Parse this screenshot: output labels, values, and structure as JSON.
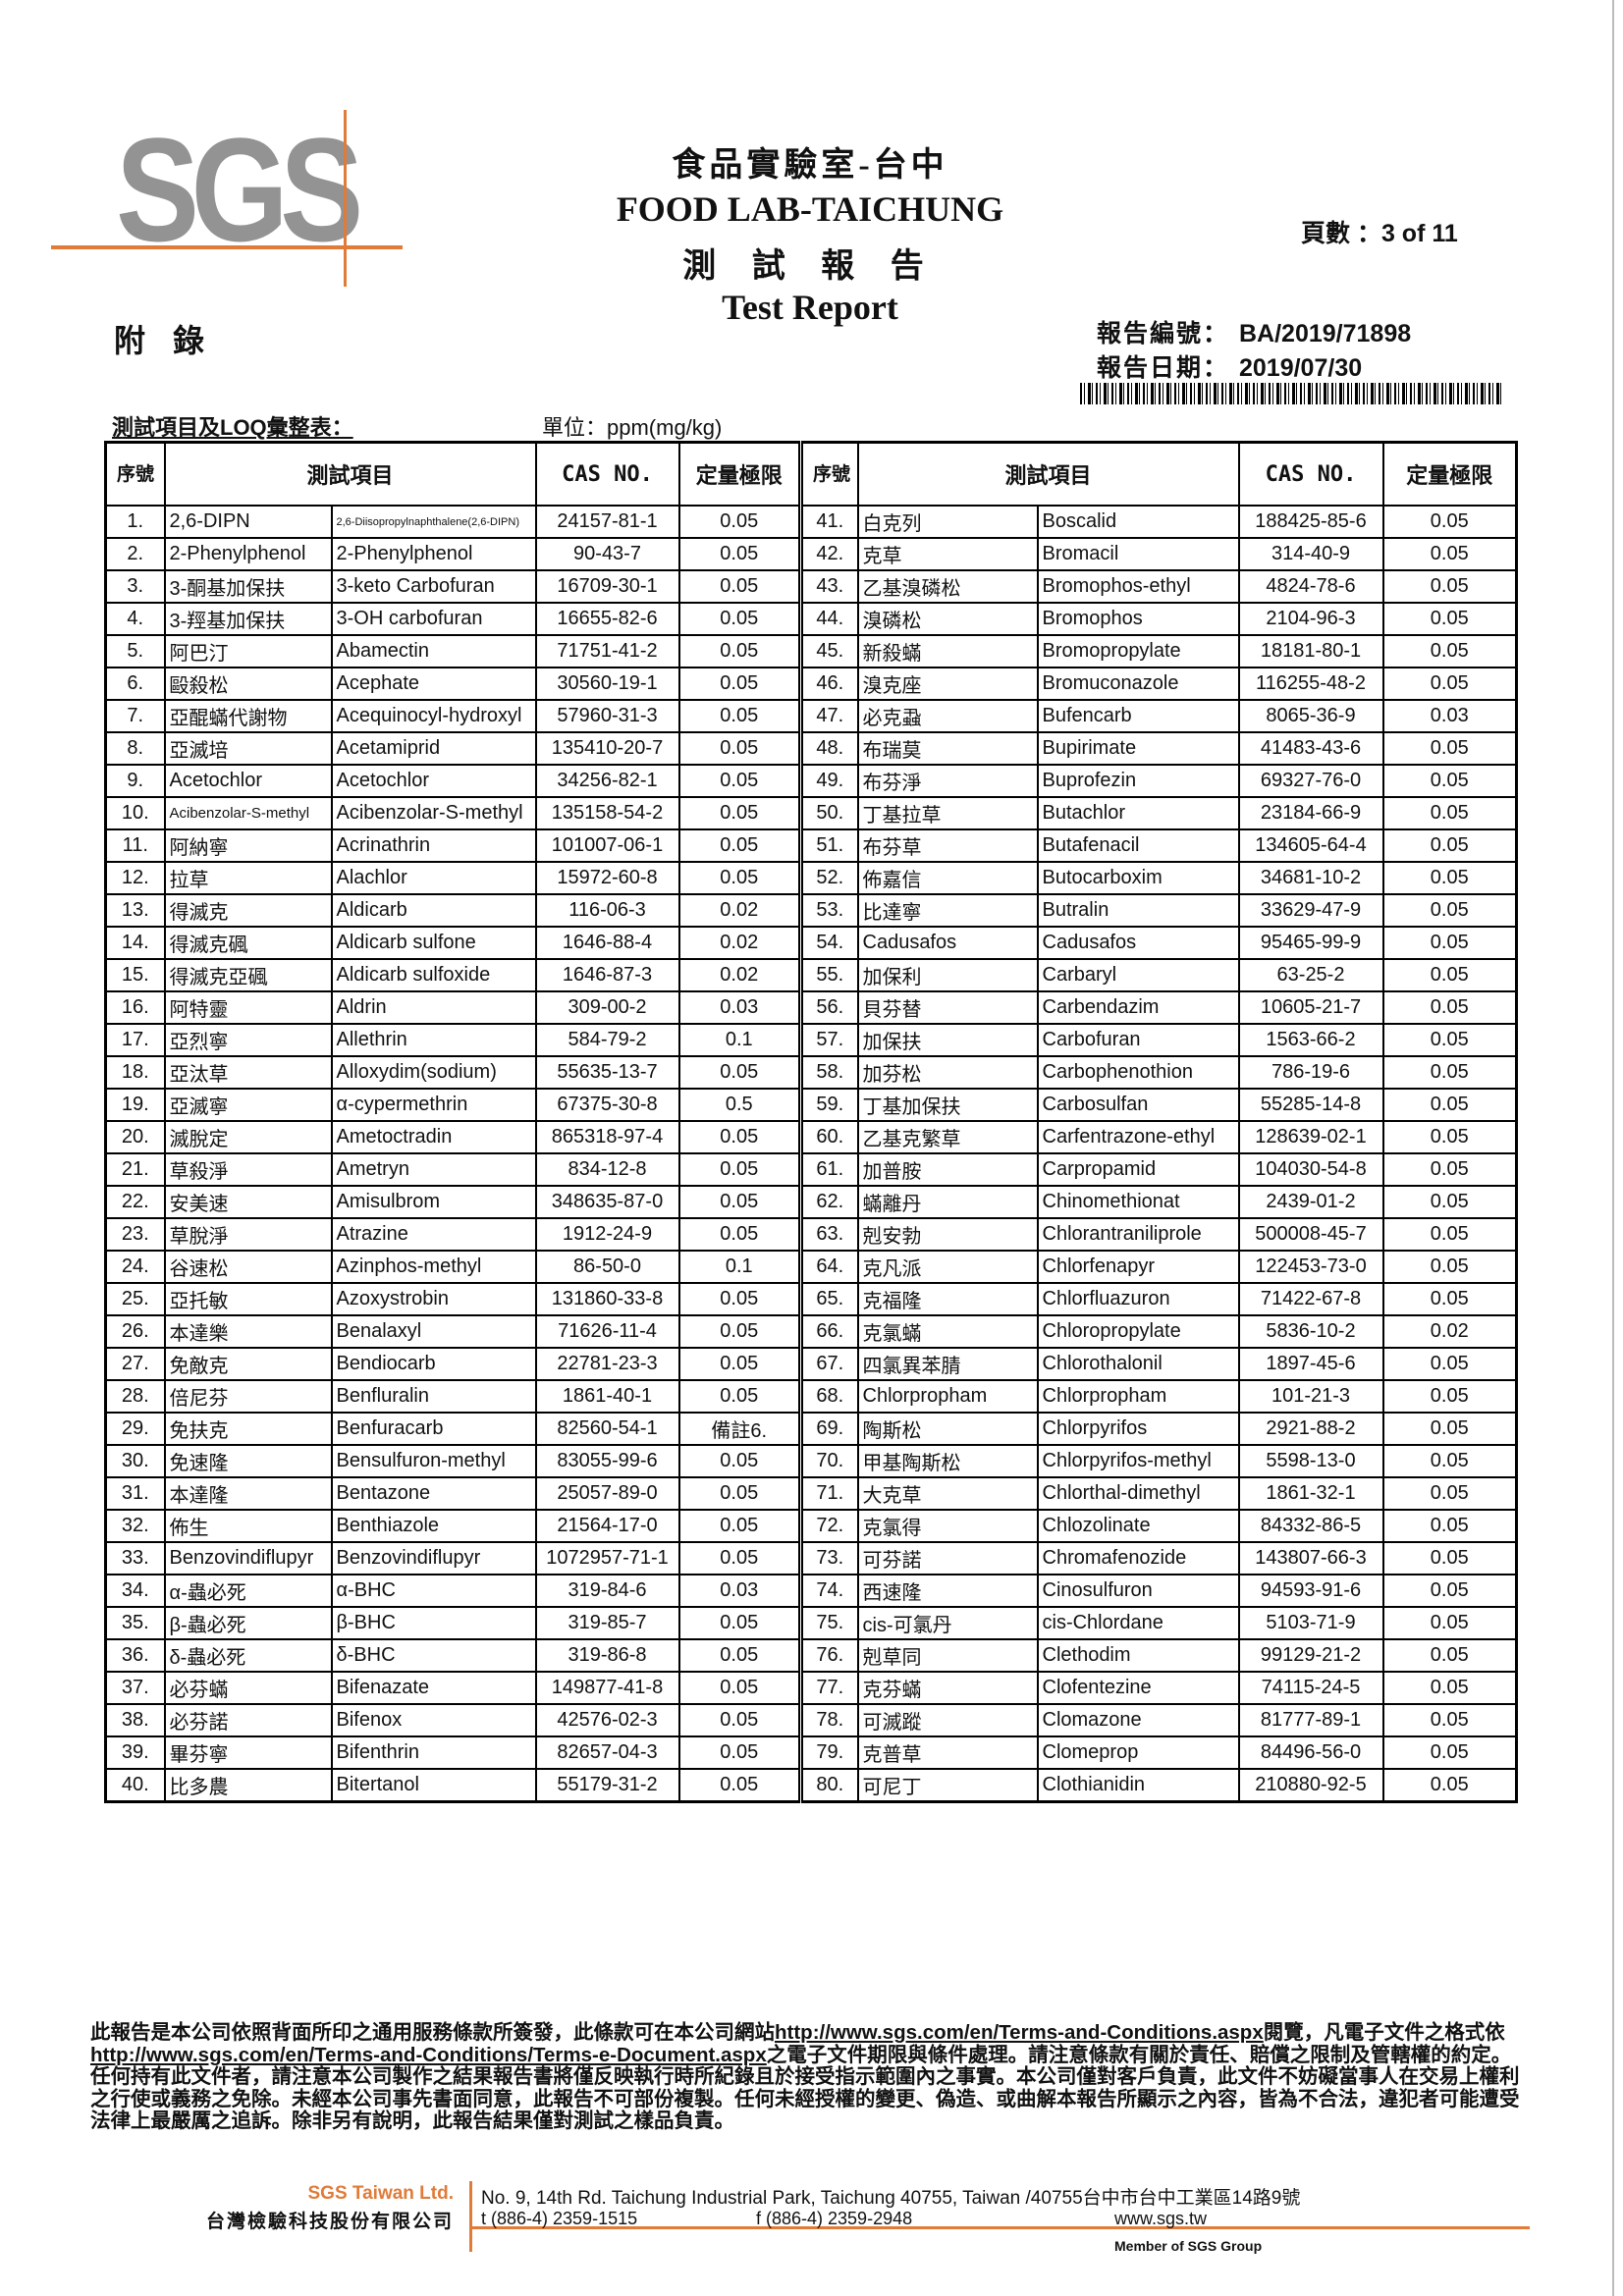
{
  "header": {
    "logo_text": "SGS",
    "brand_color": "#e07b39",
    "logo_color": "#939393",
    "lab_name_zh": "食品實驗室-台中",
    "lab_name_en": "FOOD LAB-TAICHUNG",
    "report_title_zh": "測 試 報 告",
    "report_title_en": "Test Report",
    "page_label": "頁數 ：",
    "page_value": "3 of 11",
    "appendix": "附錄",
    "report_no_label": "報告編號：",
    "report_no": "BA/2019/71898",
    "report_date_label": "報告日期：",
    "report_date": "2019/07/30",
    "summary_title": "測試項目及LOQ彙整表：",
    "unit": "單位：ppm(mg/kg)"
  },
  "table": {
    "headers": {
      "seq": "序號",
      "item": "測試項目",
      "cas": "CAS NO.",
      "loq": "定量極限"
    },
    "rows": [
      [
        "1.",
        "2,6-DIPN",
        "2,6-Diisopropylnaphthalene(2,6-DIPN)",
        "24157-81-1",
        "0.05"
      ],
      [
        "2.",
        "2-Phenylphenol",
        "2-Phenylphenol",
        "90-43-7",
        "0.05"
      ],
      [
        "3.",
        "3-酮基加保扶",
        "3-keto Carbofuran",
        "16709-30-1",
        "0.05"
      ],
      [
        "4.",
        "3-羥基加保扶",
        "3-OH carbofuran",
        "16655-82-6",
        "0.05"
      ],
      [
        "5.",
        "阿巴汀",
        "Abamectin",
        "71751-41-2",
        "0.05"
      ],
      [
        "6.",
        "毆殺松",
        "Acephate",
        "30560-19-1",
        "0.05"
      ],
      [
        "7.",
        "亞醌蟎代謝物",
        "Acequinocyl-hydroxyl",
        "57960-31-3",
        "0.05"
      ],
      [
        "8.",
        "亞滅培",
        "Acetamiprid",
        "135410-20-7",
        "0.05"
      ],
      [
        "9.",
        "Acetochlor",
        "Acetochlor",
        "34256-82-1",
        "0.05"
      ],
      [
        "10.",
        "Acibenzolar-S-methyl",
        "Acibenzolar-S-methyl",
        "135158-54-2",
        "0.05"
      ],
      [
        "11.",
        "阿納寧",
        "Acrinathrin",
        "101007-06-1",
        "0.05"
      ],
      [
        "12.",
        "拉草",
        "Alachlor",
        "15972-60-8",
        "0.05"
      ],
      [
        "13.",
        "得滅克",
        "Aldicarb",
        "116-06-3",
        "0.02"
      ],
      [
        "14.",
        "得滅克碸",
        "Aldicarb sulfone",
        "1646-88-4",
        "0.02"
      ],
      [
        "15.",
        "得滅克亞碸",
        "Aldicarb sulfoxide",
        "1646-87-3",
        "0.02"
      ],
      [
        "16.",
        "阿特靈",
        "Aldrin",
        "309-00-2",
        "0.03"
      ],
      [
        "17.",
        "亞烈寧",
        "Allethrin",
        "584-79-2",
        "0.1"
      ],
      [
        "18.",
        "亞汰草",
        "Alloxydim(sodium)",
        "55635-13-7",
        "0.05"
      ],
      [
        "19.",
        "亞滅寧",
        "α-cypermethrin",
        "67375-30-8",
        "0.5"
      ],
      [
        "20.",
        "滅脫定",
        "Ametoctradin",
        "865318-97-4",
        "0.05"
      ],
      [
        "21.",
        "草殺淨",
        "Ametryn",
        "834-12-8",
        "0.05"
      ],
      [
        "22.",
        "安美速",
        "Amisulbrom",
        "348635-87-0",
        "0.05"
      ],
      [
        "23.",
        "草脫淨",
        "Atrazine",
        "1912-24-9",
        "0.05"
      ],
      [
        "24.",
        "谷速松",
        "Azinphos-methyl",
        "86-50-0",
        "0.1"
      ],
      [
        "25.",
        "亞托敏",
        "Azoxystrobin",
        "131860-33-8",
        "0.05"
      ],
      [
        "26.",
        "本達樂",
        "Benalaxyl",
        "71626-11-4",
        "0.05"
      ],
      [
        "27.",
        "免敵克",
        "Bendiocarb",
        "22781-23-3",
        "0.05"
      ],
      [
        "28.",
        "倍尼芬",
        "Benfluralin",
        "1861-40-1",
        "0.05"
      ],
      [
        "29.",
        "免扶克",
        "Benfuracarb",
        "82560-54-1",
        "備註6."
      ],
      [
        "30.",
        "免速隆",
        "Bensulfuron-methyl",
        "83055-99-6",
        "0.05"
      ],
      [
        "31.",
        "本達隆",
        "Bentazone",
        "25057-89-0",
        "0.05"
      ],
      [
        "32.",
        "佈生",
        "Benthiazole",
        "21564-17-0",
        "0.05"
      ],
      [
        "33.",
        "Benzovindiflupyr",
        "Benzovindiflupyr",
        "1072957-71-1",
        "0.05"
      ],
      [
        "34.",
        "α-蟲必死",
        "α-BHC",
        "319-84-6",
        "0.03"
      ],
      [
        "35.",
        "β-蟲必死",
        "β-BHC",
        "319-85-7",
        "0.05"
      ],
      [
        "36.",
        "δ-蟲必死",
        "δ-BHC",
        "319-86-8",
        "0.05"
      ],
      [
        "37.",
        "必芬蟎",
        "Bifenazate",
        "149877-41-8",
        "0.05"
      ],
      [
        "38.",
        "必芬諾",
        "Bifenox",
        "42576-02-3",
        "0.05"
      ],
      [
        "39.",
        "畢芬寧",
        "Bifenthrin",
        "82657-04-3",
        "0.05"
      ],
      [
        "40.",
        "比多農",
        "Bitertanol",
        "55179-31-2",
        "0.05"
      ],
      [
        "41.",
        "白克列",
        "Boscalid",
        "188425-85-6",
        "0.05"
      ],
      [
        "42.",
        "克草",
        "Bromacil",
        "314-40-9",
        "0.05"
      ],
      [
        "43.",
        "乙基溴磷松",
        "Bromophos-ethyl",
        "4824-78-6",
        "0.05"
      ],
      [
        "44.",
        "溴磷松",
        "Bromophos",
        "2104-96-3",
        "0.05"
      ],
      [
        "45.",
        "新殺蟎",
        "Bromopropylate",
        "18181-80-1",
        "0.05"
      ],
      [
        "46.",
        "溴克座",
        "Bromuconazole",
        "116255-48-2",
        "0.05"
      ],
      [
        "47.",
        "必克蝨",
        "Bufencarb",
        "8065-36-9",
        "0.03"
      ],
      [
        "48.",
        "布瑞莫",
        "Bupirimate",
        "41483-43-6",
        "0.05"
      ],
      [
        "49.",
        "布芬淨",
        "Buprofezin",
        "69327-76-0",
        "0.05"
      ],
      [
        "50.",
        "丁基拉草",
        "Butachlor",
        "23184-66-9",
        "0.05"
      ],
      [
        "51.",
        "布芬草",
        "Butafenacil",
        "134605-64-4",
        "0.05"
      ],
      [
        "52.",
        "佈嘉信",
        "Butocarboxim",
        "34681-10-2",
        "0.05"
      ],
      [
        "53.",
        "比達寧",
        "Butralin",
        "33629-47-9",
        "0.05"
      ],
      [
        "54.",
        "Cadusafos",
        "Cadusafos",
        "95465-99-9",
        "0.05"
      ],
      [
        "55.",
        "加保利",
        "Carbaryl",
        "63-25-2",
        "0.05"
      ],
      [
        "56.",
        "貝芬替",
        "Carbendazim",
        "10605-21-7",
        "0.05"
      ],
      [
        "57.",
        "加保扶",
        "Carbofuran",
        "1563-66-2",
        "0.05"
      ],
      [
        "58.",
        "加芬松",
        "Carbophenothion",
        "786-19-6",
        "0.05"
      ],
      [
        "59.",
        "丁基加保扶",
        "Carbosulfan",
        "55285-14-8",
        "0.05"
      ],
      [
        "60.",
        "乙基克繁草",
        "Carfentrazone-ethyl",
        "128639-02-1",
        "0.05"
      ],
      [
        "61.",
        "加普胺",
        "Carpropamid",
        "104030-54-8",
        "0.05"
      ],
      [
        "62.",
        "蟎離丹",
        "Chinomethionat",
        "2439-01-2",
        "0.05"
      ],
      [
        "63.",
        "剋安勃",
        "Chlorantraniliprole",
        "500008-45-7",
        "0.05"
      ],
      [
        "64.",
        "克凡派",
        "Chlorfenapyr",
        "122453-73-0",
        "0.05"
      ],
      [
        "65.",
        "克福隆",
        "Chlorfluazuron",
        "71422-67-8",
        "0.05"
      ],
      [
        "66.",
        "克氯蟎",
        "Chloropropylate",
        "5836-10-2",
        "0.02"
      ],
      [
        "67.",
        "四氯異苯腈",
        "Chlorothalonil",
        "1897-45-6",
        "0.05"
      ],
      [
        "68.",
        "Chlorpropham",
        "Chlorpropham",
        "101-21-3",
        "0.05"
      ],
      [
        "69.",
        "陶斯松",
        "Chlorpyrifos",
        "2921-88-2",
        "0.05"
      ],
      [
        "70.",
        "甲基陶斯松",
        "Chlorpyrifos-methyl",
        "5598-13-0",
        "0.05"
      ],
      [
        "71.",
        "大克草",
        "Chlorthal-dimethyl",
        "1861-32-1",
        "0.05"
      ],
      [
        "72.",
        "克氯得",
        "Chlozolinate",
        "84332-86-5",
        "0.05"
      ],
      [
        "73.",
        "可芬諾",
        "Chromafenozide",
        "143807-66-3",
        "0.05"
      ],
      [
        "74.",
        "西速隆",
        "Cinosulfuron",
        "94593-91-6",
        "0.05"
      ],
      [
        "75.",
        "cis-可氯丹",
        "cis-Chlordane",
        "5103-71-9",
        "0.05"
      ],
      [
        "76.",
        "剋草同",
        "Clethodim",
        "99129-21-2",
        "0.05"
      ],
      [
        "77.",
        "克芬蟎",
        "Clofentezine",
        "74115-24-5",
        "0.05"
      ],
      [
        "78.",
        "可滅蹤",
        "Clomazone",
        "81777-89-1",
        "0.05"
      ],
      [
        "79.",
        "克普草",
        "Clomeprop",
        "84496-56-0",
        "0.05"
      ],
      [
        "80.",
        "可尼丁",
        "Clothianidin",
        "210880-92-5",
        "0.05"
      ]
    ]
  },
  "footer": {
    "disclaimer_1a": "此報告是本公司依照背面所印之通用服務條款所簽發，此條款可在本公司網站",
    "link_1": "http://www.sgs.com/en/Terms-and-Conditions.aspx",
    "disclaimer_1b": "閱覽，凡電子文件之格式依",
    "link_2": "http://www.sgs.com/en/Terms-and-Conditions/Terms-e-Document.aspx",
    "disclaimer_2": "之電子文件期限與條件處理。請注意條款有關於責任、賠償之限制及管轄權的約定。任何持有此文件者，請注意本公司製作之結果報告書將僅反映執行時所紀錄且於接受指示範圍內之事實。本公司僅對客戶負責，此文件不妨礙當事人在交易上權利之行使或義務之免除。未經本公司事先書面同意，此報告不可部份複製。任何未經授權的變更、偽造、或曲解本報告所顯示之內容，皆為不合法，違犯者可能遭受法律上最嚴厲之追訴。除非另有說明，此報告結果僅對測試之樣品負責。",
    "company_en": "SGS Taiwan Ltd.",
    "company_zh": "台灣檢驗科技股份有限公司",
    "address": "No. 9, 14th Rd. Taichung Industrial Park, Taichung 40755, Taiwan /40755台中市台中工業區14路9號",
    "tel": "t (886-4) 2359-1515",
    "fax": "f (886-4) 2359-2948",
    "website": "www.sgs.tw",
    "member": "Member of SGS Group"
  }
}
